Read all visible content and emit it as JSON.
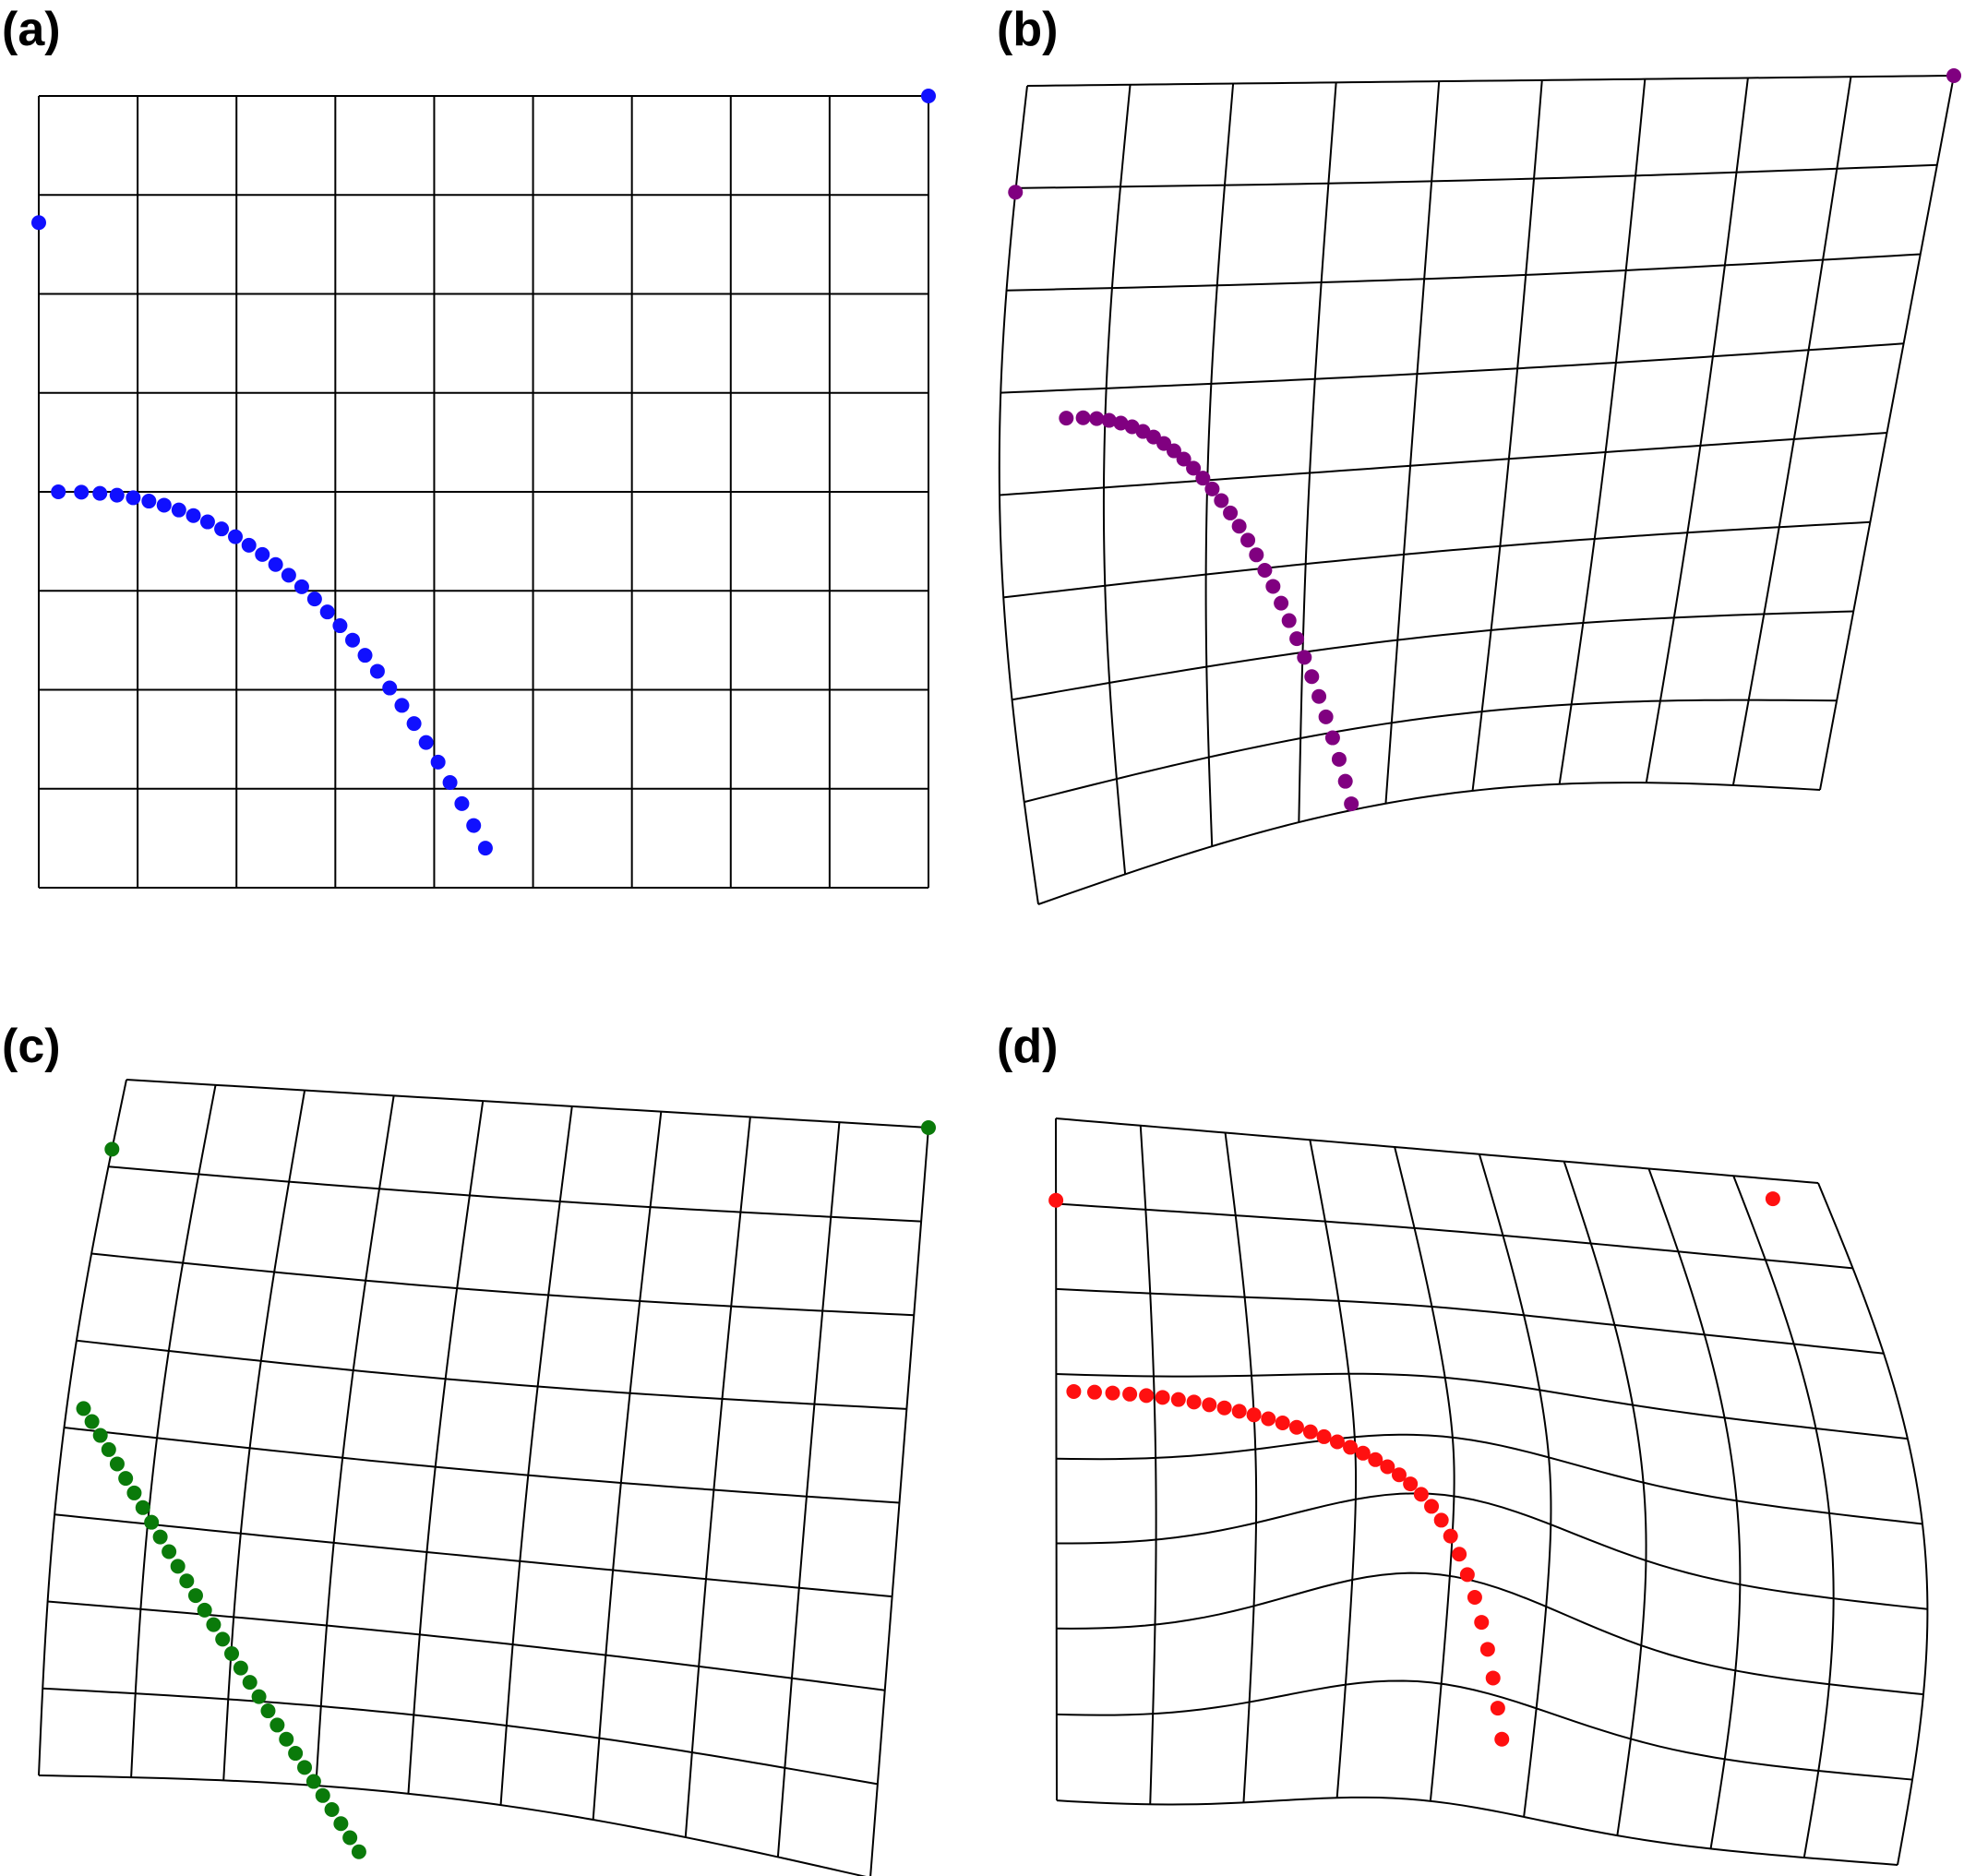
{
  "figure": {
    "panels": [
      {
        "id": "a",
        "label": "(a)",
        "color": "#1010ff"
      },
      {
        "id": "b",
        "label": "(b)",
        "color": "#800080"
      },
      {
        "id": "c",
        "label": "(c)",
        "color": "#0a7a0a"
      },
      {
        "id": "d",
        "label": "(d)",
        "color": "#ff1010"
      }
    ]
  }
}
